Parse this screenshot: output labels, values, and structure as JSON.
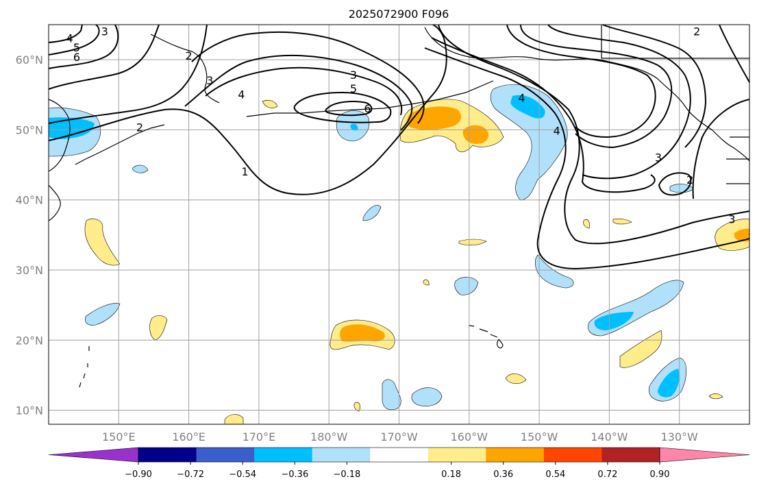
{
  "title": "2025072900 F096",
  "map": {
    "lat_range": [
      8,
      65
    ],
    "lon_range": [
      140,
      240
    ],
    "lat_ticks": [
      {
        "value": 10,
        "label": "10°N"
      },
      {
        "value": 20,
        "label": "20°N"
      },
      {
        "value": 30,
        "label": "30°N"
      },
      {
        "value": 40,
        "label": "40°N"
      },
      {
        "value": 50,
        "label": "50°N"
      },
      {
        "value": 60,
        "label": "60°N"
      }
    ],
    "lon_ticks": [
      {
        "value": 150,
        "label": "150°E"
      },
      {
        "value": 160,
        "label": "160°E"
      },
      {
        "value": 170,
        "label": "170°E"
      },
      {
        "value": 180,
        "label": "180°W"
      },
      {
        "value": 190,
        "label": "170°W"
      },
      {
        "value": 200,
        "label": "160°W"
      },
      {
        "value": 210,
        "label": "150°W"
      },
      {
        "value": 220,
        "label": "140°W"
      },
      {
        "value": 230,
        "label": "130°W"
      }
    ],
    "contour_labels": [
      {
        "text": "3",
        "lon": 148,
        "lat": 63.5
      },
      {
        "text": "4",
        "lon": 143,
        "lat": 62.5
      },
      {
        "text": "5",
        "lon": 144,
        "lat": 61.2
      },
      {
        "text": "6",
        "lon": 144,
        "lat": 59.8
      },
      {
        "text": "2",
        "lon": 153,
        "lat": 49.8
      },
      {
        "text": "2",
        "lon": 160,
        "lat": 60
      },
      {
        "text": "3",
        "lon": 163,
        "lat": 56.5
      },
      {
        "text": "4",
        "lon": 167.5,
        "lat": 54.5
      },
      {
        "text": "1",
        "lon": 168,
        "lat": 43.5
      },
      {
        "text": "3",
        "lon": 183.5,
        "lat": 57.3
      },
      {
        "text": "5",
        "lon": 183.5,
        "lat": 55.3
      },
      {
        "text": "6",
        "lon": 185.5,
        "lat": 52.5
      },
      {
        "text": "4",
        "lon": 207.5,
        "lat": 54
      },
      {
        "text": "4",
        "lon": 212.5,
        "lat": 49.3
      },
      {
        "text": "3",
        "lon": 227,
        "lat": 45.5
      },
      {
        "text": "2",
        "lon": 231.5,
        "lat": 42.3
      },
      {
        "text": "3",
        "lon": 237.5,
        "lat": 36.7
      },
      {
        "text": "2",
        "lon": 232.5,
        "lat": 63.5
      }
    ]
  },
  "colorbar": {
    "colors": [
      "#9932cc",
      "#00008b",
      "#3a5fcd",
      "#00bfff",
      "#b0e0fa",
      "#ffffff",
      "#ffec8b",
      "#ffa500",
      "#ff4500",
      "#b22222",
      "#ff85a9"
    ],
    "ticks": [
      {
        "value": -0.9,
        "label": "−0.90"
      },
      {
        "value": -0.72,
        "label": "−0.72"
      },
      {
        "value": -0.54,
        "label": "−0.54"
      },
      {
        "value": -0.36,
        "label": "−0.36"
      },
      {
        "value": -0.18,
        "label": "−0.18"
      },
      {
        "value": 0.18,
        "label": "0.18"
      },
      {
        "value": 0.36,
        "label": "0.36"
      },
      {
        "value": 0.54,
        "label": "0.54"
      },
      {
        "value": 0.72,
        "label": "0.72"
      },
      {
        "value": 0.9,
        "label": "0.90"
      }
    ]
  },
  "colors": {
    "grid": "#a0a0a0",
    "axis_label": "#808080",
    "contour": "#000000",
    "light_blue": "#b0e0fa",
    "blue": "#00bfff",
    "light_yellow": "#ffec8b",
    "orange": "#ffa500"
  }
}
